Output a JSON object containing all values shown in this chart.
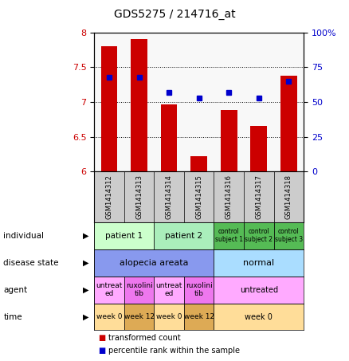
{
  "title": "GDS5275 / 214716_at",
  "samples": [
    "GSM1414312",
    "GSM1414313",
    "GSM1414314",
    "GSM1414315",
    "GSM1414316",
    "GSM1414317",
    "GSM1414318"
  ],
  "bar_values": [
    7.8,
    7.9,
    6.97,
    6.22,
    6.88,
    6.65,
    7.38
  ],
  "dot_values": [
    68,
    68,
    57,
    53,
    57,
    53,
    65
  ],
  "ylim_left": [
    6.0,
    8.0
  ],
  "ylim_right": [
    0,
    100
  ],
  "yticks_left": [
    6.0,
    6.5,
    7.0,
    7.5,
    8.0
  ],
  "yticks_right": [
    0,
    25,
    50,
    75,
    100
  ],
  "bar_color": "#cc0000",
  "dot_color": "#0000cc",
  "bar_bottom": 6.0,
  "annotation_rows": [
    {
      "label": "individual",
      "cells": [
        {
          "text": "patient 1",
          "span": 2,
          "color": "#ccffcc",
          "fontsize": 7.5
        },
        {
          "text": "patient 2",
          "span": 2,
          "color": "#aaeebb",
          "fontsize": 7.5
        },
        {
          "text": "control\nsubject 1",
          "span": 1,
          "color": "#55bb55",
          "fontsize": 5.5
        },
        {
          "text": "control\nsubject 2",
          "span": 1,
          "color": "#55bb55",
          "fontsize": 5.5
        },
        {
          "text": "control\nsubject 3",
          "span": 1,
          "color": "#55bb55",
          "fontsize": 5.5
        }
      ]
    },
    {
      "label": "disease state",
      "cells": [
        {
          "text": "alopecia areata",
          "span": 4,
          "color": "#8899ee",
          "fontsize": 8
        },
        {
          "text": "normal",
          "span": 3,
          "color": "#aaddff",
          "fontsize": 8
        }
      ]
    },
    {
      "label": "agent",
      "cells": [
        {
          "text": "untreat\ned",
          "span": 1,
          "color": "#ffaaff",
          "fontsize": 6.5
        },
        {
          "text": "ruxolini\ntib",
          "span": 1,
          "color": "#ee77ee",
          "fontsize": 6.5
        },
        {
          "text": "untreat\ned",
          "span": 1,
          "color": "#ffaaff",
          "fontsize": 6.5
        },
        {
          "text": "ruxolini\ntib",
          "span": 1,
          "color": "#ee77ee",
          "fontsize": 6.5
        },
        {
          "text": "untreated",
          "span": 3,
          "color": "#ffaaff",
          "fontsize": 7
        }
      ]
    },
    {
      "label": "time",
      "cells": [
        {
          "text": "week 0",
          "span": 1,
          "color": "#ffdd99",
          "fontsize": 6.5
        },
        {
          "text": "week 12",
          "span": 1,
          "color": "#ddaa55",
          "fontsize": 6.5
        },
        {
          "text": "week 0",
          "span": 1,
          "color": "#ffdd99",
          "fontsize": 6.5
        },
        {
          "text": "week 12",
          "span": 1,
          "color": "#ddaa55",
          "fontsize": 6.5
        },
        {
          "text": "week 0",
          "span": 3,
          "color": "#ffdd99",
          "fontsize": 7
        }
      ]
    }
  ],
  "legend_items": [
    {
      "color": "#cc0000",
      "label": "transformed count"
    },
    {
      "color": "#0000cc",
      "label": "percentile rank within the sample"
    }
  ],
  "tick_label_color_left": "#cc0000",
  "tick_label_color_right": "#0000cc",
  "n_samples": 7,
  "chart_bg": "#f8f8f8",
  "sample_bg": "#cccccc"
}
